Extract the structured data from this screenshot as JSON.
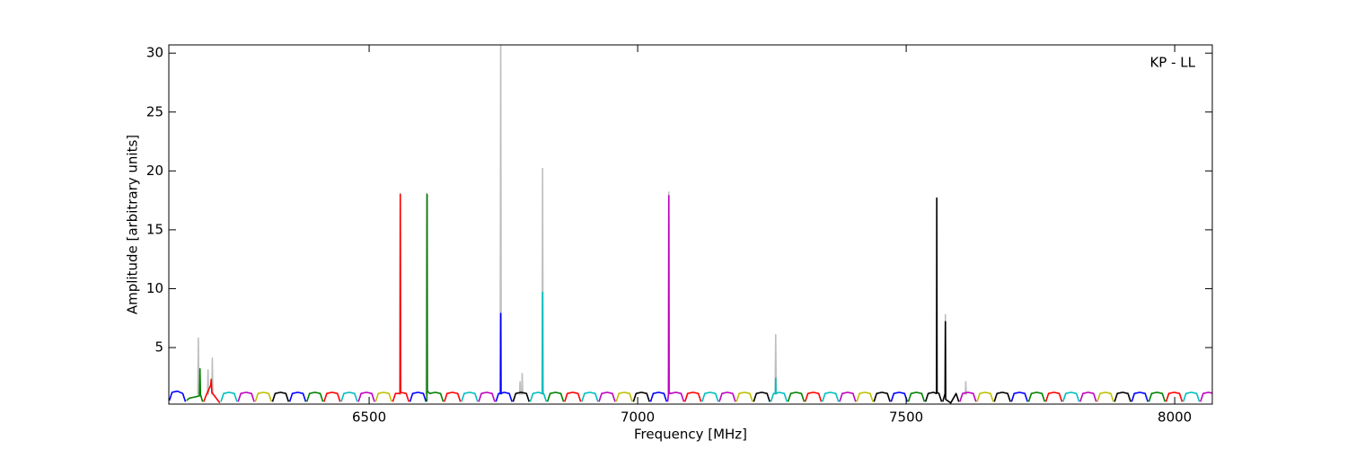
{
  "chart_data": {
    "type": "line",
    "annotation": "KP - LL",
    "xlabel": "Frequency [MHz]",
    "ylabel": "Amplitude [arbitrary units]",
    "xlim": [
      6127,
      8070
    ],
    "ylim": [
      0.2,
      30.7
    ],
    "xticks": [
      6500,
      7000,
      7500,
      8000
    ],
    "yticks": [
      5,
      10,
      15,
      20,
      25,
      30
    ],
    "series": [
      {
        "color": "#bebebe",
        "x": [
          6181,
          6182,
          6183,
          null,
          6199,
          6200,
          6201,
          null,
          6207,
          6208,
          6209,
          null,
          6557,
          6558,
          6559,
          null,
          6606,
          6607,
          6608,
          null,
          6744,
          6745,
          6746,
          null,
          6780,
          6781,
          6782,
          null,
          6784,
          6785,
          6786,
          null,
          6822,
          6823,
          6824,
          null,
          7057,
          7058,
          7059,
          null,
          7256,
          7257,
          7258,
          null,
          7572,
          7573,
          7574,
          null,
          7610,
          7611,
          7612
        ],
        "values": [
          1.0,
          5.8,
          1.0,
          null,
          1.0,
          3.1,
          1.0,
          null,
          1.0,
          4.1,
          1.0,
          null,
          1.0,
          18.1,
          1.0,
          null,
          1.0,
          18.1,
          1.0,
          null,
          1.0,
          31,
          1.0,
          null,
          1.0,
          2.1,
          1.0,
          null,
          1.0,
          2.8,
          1.0,
          null,
          1.0,
          20.2,
          1.0,
          null,
          1.0,
          18.2,
          1.0,
          null,
          1.0,
          6.1,
          1.0,
          null,
          1.0,
          7.8,
          1.0,
          null,
          1.0,
          2.1,
          1.0
        ]
      },
      {
        "color": "#0000ff",
        "x": [
          6128,
          6133,
          6143,
          6153,
          6158
        ],
        "values": [
          0.5,
          1.2,
          1.3,
          1.1,
          0.4
        ]
      },
      {
        "color": "#008000",
        "x": [
          6160,
          6165,
          6175,
          6184,
          6185,
          6186,
          6190
        ],
        "values": [
          0.5,
          0.7,
          0.8,
          0.9,
          3.2,
          1.0,
          0.4
        ]
      },
      {
        "color": "#ff0000",
        "x": [
          6192,
          6197,
          6205,
          6206,
          6207,
          6217,
          6222
        ],
        "values": [
          0.4,
          1.0,
          1.8,
          2.3,
          1.2,
          0.6,
          0.3
        ]
      },
      {
        "color": "#00bfbf",
        "x": [
          6224,
          6229,
          6239,
          6249,
          6254
        ],
        "values": [
          0.4,
          1.1,
          1.2,
          1.1,
          0.4
        ]
      },
      {
        "color": "#bf00bf",
        "x": [
          6256,
          6261,
          6271,
          6281,
          6286
        ],
        "values": [
          0.4,
          1.1,
          1.2,
          1.1,
          0.4
        ]
      },
      {
        "color": "#bfbf00",
        "x": [
          6288,
          6293,
          6303,
          6313,
          6318
        ],
        "values": [
          0.4,
          1.1,
          1.2,
          1.1,
          0.4
        ]
      },
      {
        "color": "#000000",
        "x": [
          6320,
          6325,
          6335,
          6345,
          6350
        ],
        "values": [
          0.4,
          1.1,
          1.2,
          1.1,
          0.4
        ]
      },
      {
        "color": "#0000ff",
        "x": [
          6352,
          6357,
          6367,
          6377,
          6382
        ],
        "values": [
          0.4,
          1.1,
          1.2,
          1.1,
          0.4
        ]
      },
      {
        "color": "#008000",
        "x": [
          6384,
          6389,
          6399,
          6409,
          6414
        ],
        "values": [
          0.4,
          1.1,
          1.2,
          1.1,
          0.4
        ]
      },
      {
        "color": "#ff0000",
        "x": [
          6416,
          6421,
          6431,
          6441,
          6446
        ],
        "values": [
          0.4,
          1.1,
          1.2,
          1.1,
          0.4
        ]
      },
      {
        "color": "#00bfbf",
        "x": [
          6448,
          6453,
          6463,
          6473,
          6478
        ],
        "values": [
          0.4,
          1.1,
          1.2,
          1.1,
          0.4
        ]
      },
      {
        "color": "#bf00bf",
        "x": [
          6480,
          6485,
          6495,
          6505,
          6510
        ],
        "values": [
          0.4,
          1.1,
          1.2,
          1.1,
          0.4
        ]
      },
      {
        "color": "#bfbf00",
        "x": [
          6512,
          6517,
          6527,
          6537,
          6542
        ],
        "values": [
          0.4,
          1.1,
          1.2,
          1.1,
          0.4
        ]
      },
      {
        "color": "#ff0000",
        "x": [
          6544,
          6549,
          6557.5,
          6558,
          6558.5,
          6569,
          6574
        ],
        "values": [
          0.4,
          1.1,
          1.1,
          18,
          1.2,
          1.1,
          0.4
        ]
      },
      {
        "color": "#0000ff",
        "x": [
          6576,
          6581,
          6591,
          6601,
          6606
        ],
        "values": [
          0.4,
          1.1,
          1.2,
          1.1,
          0.4
        ]
      },
      {
        "color": "#008000",
        "x": [
          6607.5,
          6608,
          6608.5,
          6613,
          6623,
          6633,
          6638
        ],
        "values": [
          0.4,
          18,
          1.3,
          1.1,
          1.2,
          1.1,
          0.4
        ]
      },
      {
        "color": "#ff0000",
        "x": [
          6640,
          6645,
          6655,
          6665,
          6670
        ],
        "values": [
          0.4,
          1.1,
          1.2,
          1.1,
          0.4
        ]
      },
      {
        "color": "#00bfbf",
        "x": [
          6672,
          6677,
          6687,
          6697,
          6702
        ],
        "values": [
          0.4,
          1.1,
          1.2,
          1.1,
          0.4
        ]
      },
      {
        "color": "#bf00bf",
        "x": [
          6704,
          6709,
          6719,
          6729,
          6734
        ],
        "values": [
          0.4,
          1.1,
          1.2,
          1.1,
          0.4
        ]
      },
      {
        "color": "#0000ff",
        "x": [
          6736,
          6741,
          6744.5,
          6745,
          6745.5,
          6751,
          6761,
          6766
        ],
        "values": [
          0.4,
          1.1,
          1.1,
          7.9,
          1.1,
          1.2,
          1.1,
          0.4
        ]
      },
      {
        "color": "#000000",
        "x": [
          6768,
          6773,
          6783,
          6793,
          6798
        ],
        "values": [
          0.4,
          1.1,
          1.2,
          1.1,
          0.4
        ]
      },
      {
        "color": "#00bfbf",
        "x": [
          6800,
          6805,
          6815,
          6822.5,
          6823,
          6823.5,
          6825,
          6830
        ],
        "values": [
          0.4,
          1.1,
          1.2,
          1.1,
          9.7,
          1.1,
          1.1,
          0.4
        ]
      },
      {
        "color": "#008000",
        "x": [
          6832,
          6837,
          6847,
          6857,
          6862
        ],
        "values": [
          0.4,
          1.1,
          1.2,
          1.1,
          0.4
        ]
      },
      {
        "color": "#ff0000",
        "x": [
          6864,
          6869,
          6879,
          6889,
          6894
        ],
        "values": [
          0.4,
          1.1,
          1.2,
          1.1,
          0.4
        ]
      },
      {
        "color": "#00bfbf",
        "x": [
          6896,
          6901,
          6911,
          6921,
          6926
        ],
        "values": [
          0.4,
          1.1,
          1.2,
          1.1,
          0.4
        ]
      },
      {
        "color": "#bf00bf",
        "x": [
          6928,
          6933,
          6943,
          6953,
          6958
        ],
        "values": [
          0.4,
          1.1,
          1.2,
          1.1,
          0.4
        ]
      },
      {
        "color": "#bfbf00",
        "x": [
          6960,
          6965,
          6975,
          6985,
          6990
        ],
        "values": [
          0.4,
          1.1,
          1.2,
          1.1,
          0.4
        ]
      },
      {
        "color": "#000000",
        "x": [
          6992,
          6997,
          7007,
          7017,
          7022
        ],
        "values": [
          0.4,
          1.1,
          1.2,
          1.1,
          0.4
        ]
      },
      {
        "color": "#0000ff",
        "x": [
          7024,
          7029,
          7039,
          7049,
          7054
        ],
        "values": [
          0.4,
          1.1,
          1.2,
          1.1,
          0.4
        ]
      },
      {
        "color": "#bf00bf",
        "x": [
          7056,
          7057.5,
          7058,
          7058.5,
          7061,
          7071,
          7081,
          7086
        ],
        "values": [
          0.4,
          1.1,
          17.9,
          1.2,
          1.1,
          1.2,
          1.1,
          0.4
        ]
      },
      {
        "color": "#ff0000",
        "x": [
          7088,
          7093,
          7103,
          7113,
          7118
        ],
        "values": [
          0.4,
          1.1,
          1.2,
          1.1,
          0.4
        ]
      },
      {
        "color": "#00bfbf",
        "x": [
          7120,
          7125,
          7135,
          7145,
          7150
        ],
        "values": [
          0.4,
          1.1,
          1.2,
          1.1,
          0.4
        ]
      },
      {
        "color": "#bf00bf",
        "x": [
          7152,
          7157,
          7167,
          7177,
          7182
        ],
        "values": [
          0.4,
          1.1,
          1.2,
          1.1,
          0.4
        ]
      },
      {
        "color": "#bfbf00",
        "x": [
          7184,
          7189,
          7199,
          7209,
          7214
        ],
        "values": [
          0.4,
          1.1,
          1.2,
          1.1,
          0.4
        ]
      },
      {
        "color": "#000000",
        "x": [
          7216,
          7221,
          7231,
          7241,
          7246
        ],
        "values": [
          0.4,
          1.1,
          1.2,
          1.1,
          0.4
        ]
      },
      {
        "color": "#00bfbf",
        "x": [
          7248,
          7253,
          7256.5,
          7257,
          7257.5,
          7263,
          7273,
          7278
        ],
        "values": [
          0.4,
          1.1,
          1.1,
          2.4,
          1.1,
          1.2,
          1.1,
          0.4
        ]
      },
      {
        "color": "#008000",
        "x": [
          7280,
          7285,
          7295,
          7305,
          7310
        ],
        "values": [
          0.4,
          1.1,
          1.2,
          1.1,
          0.4
        ]
      },
      {
        "color": "#ff0000",
        "x": [
          7312,
          7317,
          7327,
          7337,
          7342
        ],
        "values": [
          0.4,
          1.1,
          1.2,
          1.1,
          0.4
        ]
      },
      {
        "color": "#00bfbf",
        "x": [
          7344,
          7349,
          7359,
          7369,
          7374
        ],
        "values": [
          0.4,
          1.1,
          1.2,
          1.1,
          0.4
        ]
      },
      {
        "color": "#bf00bf",
        "x": [
          7376,
          7381,
          7391,
          7401,
          7406
        ],
        "values": [
          0.4,
          1.1,
          1.2,
          1.1,
          0.4
        ]
      },
      {
        "color": "#bfbf00",
        "x": [
          7408,
          7413,
          7423,
          7433,
          7438
        ],
        "values": [
          0.4,
          1.1,
          1.2,
          1.1,
          0.4
        ]
      },
      {
        "color": "#000000",
        "x": [
          7440,
          7445,
          7455,
          7465,
          7470
        ],
        "values": [
          0.4,
          1.1,
          1.2,
          1.1,
          0.4
        ]
      },
      {
        "color": "#0000ff",
        "x": [
          7472,
          7477,
          7487,
          7497,
          7502
        ],
        "values": [
          0.4,
          1.1,
          1.2,
          1.1,
          0.4
        ]
      },
      {
        "color": "#008000",
        "x": [
          7504,
          7509,
          7519,
          7529,
          7534
        ],
        "values": [
          0.4,
          1.1,
          1.2,
          1.1,
          0.4
        ]
      },
      {
        "color": "#000000",
        "x": [
          7536,
          7541,
          7551,
          7556.5,
          7557,
          7557.5,
          7561,
          7566
        ],
        "values": [
          0.4,
          1.1,
          1.2,
          1.1,
          17.7,
          1.2,
          1.1,
          0.4
        ]
      },
      {
        "color": "#000000",
        "x": [
          7568,
          7572.5,
          7573,
          7573.5,
          7583,
          7593,
          7598
        ],
        "values": [
          0.4,
          1.1,
          7.2,
          0.6,
          0.3,
          1.1,
          0.4
        ]
      },
      {
        "color": "#bf00bf",
        "x": [
          7600,
          7605,
          7615,
          7625,
          7630
        ],
        "values": [
          0.4,
          1.1,
          1.2,
          1.1,
          0.4
        ]
      },
      {
        "color": "#bfbf00",
        "x": [
          7632,
          7637,
          7647,
          7657,
          7662
        ],
        "values": [
          0.4,
          1.1,
          1.2,
          1.1,
          0.4
        ]
      },
      {
        "color": "#000000",
        "x": [
          7664,
          7669,
          7679,
          7689,
          7694
        ],
        "values": [
          0.4,
          1.1,
          1.2,
          1.1,
          0.4
        ]
      },
      {
        "color": "#0000ff",
        "x": [
          7696,
          7701,
          7711,
          7721,
          7726
        ],
        "values": [
          0.4,
          1.1,
          1.2,
          1.1,
          0.4
        ]
      },
      {
        "color": "#008000",
        "x": [
          7728,
          7733,
          7743,
          7753,
          7758
        ],
        "values": [
          0.4,
          1.1,
          1.2,
          1.1,
          0.4
        ]
      },
      {
        "color": "#ff0000",
        "x": [
          7760,
          7765,
          7775,
          7785,
          7790
        ],
        "values": [
          0.4,
          1.1,
          1.2,
          1.1,
          0.4
        ]
      },
      {
        "color": "#00bfbf",
        "x": [
          7792,
          7797,
          7807,
          7817,
          7822
        ],
        "values": [
          0.4,
          1.1,
          1.2,
          1.1,
          0.4
        ]
      },
      {
        "color": "#bf00bf",
        "x": [
          7824,
          7829,
          7839,
          7849,
          7854
        ],
        "values": [
          0.4,
          1.1,
          1.2,
          1.1,
          0.4
        ]
      },
      {
        "color": "#bfbf00",
        "x": [
          7856,
          7861,
          7871,
          7881,
          7886
        ],
        "values": [
          0.4,
          1.1,
          1.2,
          1.1,
          0.4
        ]
      },
      {
        "color": "#000000",
        "x": [
          7888,
          7893,
          7903,
          7913,
          7918
        ],
        "values": [
          0.4,
          1.1,
          1.2,
          1.1,
          0.4
        ]
      },
      {
        "color": "#0000ff",
        "x": [
          7920,
          7925,
          7935,
          7945,
          7950
        ],
        "values": [
          0.4,
          1.1,
          1.2,
          1.1,
          0.4
        ]
      },
      {
        "color": "#008000",
        "x": [
          7952,
          7957,
          7967,
          7977,
          7982
        ],
        "values": [
          0.4,
          1.1,
          1.2,
          1.1,
          0.4
        ]
      },
      {
        "color": "#ff0000",
        "x": [
          7984,
          7989,
          7999,
          8009,
          8014
        ],
        "values": [
          0.4,
          1.1,
          1.2,
          1.1,
          0.4
        ]
      },
      {
        "color": "#00bfbf",
        "x": [
          8016,
          8021,
          8031,
          8041,
          8046
        ],
        "values": [
          0.4,
          1.1,
          1.2,
          1.1,
          0.4
        ]
      },
      {
        "color": "#bf00bf",
        "x": [
          8048,
          8053,
          8063,
          8073,
          8078
        ],
        "values": [
          0.4,
          1.1,
          1.2,
          1.1,
          0.4
        ]
      }
    ]
  }
}
